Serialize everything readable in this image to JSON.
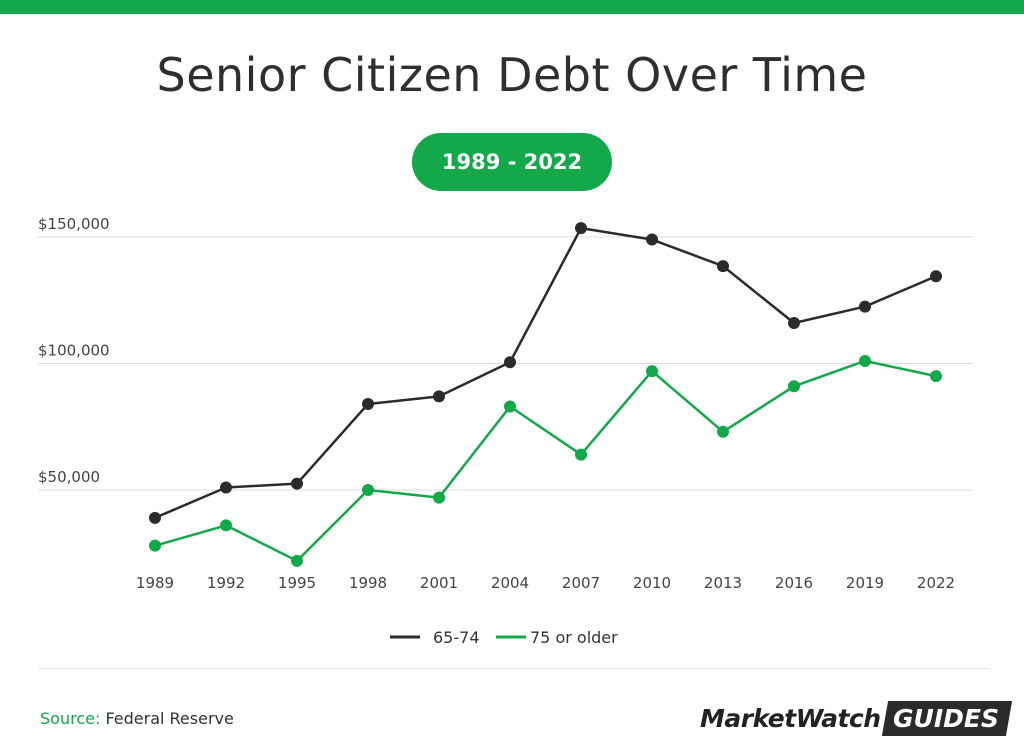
{
  "header": {
    "title": "Senior Citizen Debt Over Time",
    "period_pill": "1989 - 2022"
  },
  "footer": {
    "source_label": "Source:",
    "source_value": "Federal Reserve",
    "logo_left": "MarketWatch",
    "logo_right": "GUIDES"
  },
  "colors": {
    "accent": "#13a84a",
    "dark": "#2b2b2b",
    "grid": "#dddddd"
  },
  "chart_data": {
    "type": "line",
    "title": "Senior Citizen Debt Over Time",
    "x": [
      "1989",
      "1992",
      "1995",
      "1998",
      "2001",
      "2004",
      "2007",
      "2010",
      "2013",
      "2016",
      "2019",
      "2022"
    ],
    "y_ticks": [
      50000,
      100000,
      150000
    ],
    "y_tick_labels": [
      "$50,000",
      "$100,000",
      "$150,000"
    ],
    "ylim": [
      20000,
      155000
    ],
    "grid": true,
    "legend_position": "bottom-center",
    "series": [
      {
        "name": "65-74",
        "color": "#2b2b2b",
        "values": [
          39000,
          51000,
          52500,
          84000,
          87000,
          100500,
          153500,
          149000,
          138500,
          116000,
          122500,
          134500
        ]
      },
      {
        "name": "75 or older",
        "color": "#13a84a",
        "values": [
          28000,
          36000,
          22000,
          50000,
          47000,
          83000,
          64000,
          97000,
          73000,
          91000,
          101000,
          95000
        ]
      }
    ]
  }
}
